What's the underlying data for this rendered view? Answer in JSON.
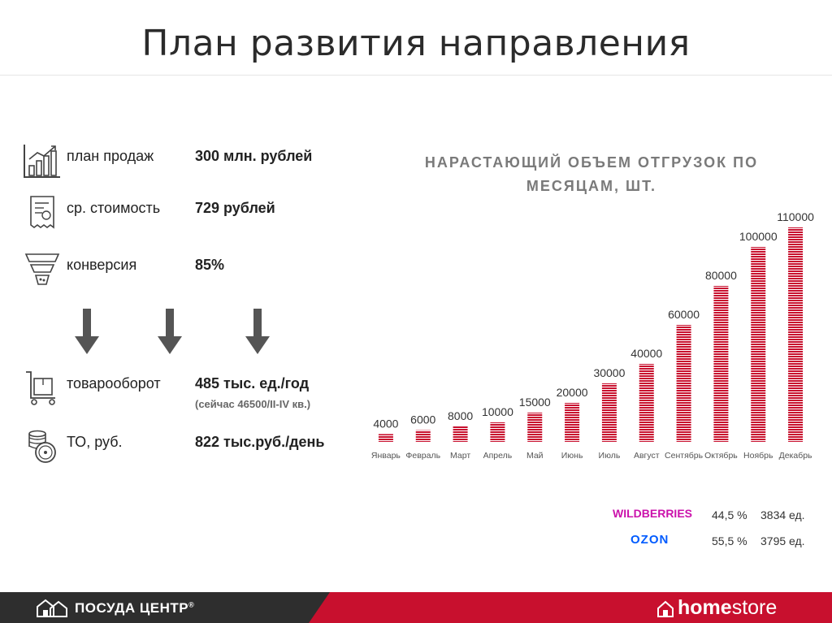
{
  "title": "План развития направления",
  "metrics": [
    {
      "icon": "sales-chart-icon",
      "label": "план продаж",
      "value": "300 млн. рублей"
    },
    {
      "icon": "receipt-icon",
      "label": "ср. стоимость",
      "value": "729 рублей"
    },
    {
      "icon": "funnel-icon",
      "label": "конверсия",
      "value": "85%"
    },
    {
      "icon": "cart-icon",
      "label": "товарооборот",
      "value": "485 тыс. ед./год",
      "sub": "(сейчас 46500/II-IV кв.)"
    },
    {
      "icon": "coins-icon",
      "label": "ТО, руб.",
      "value": "822 тыс.руб./день"
    }
  ],
  "arrows": [
    "arrow-down-icon",
    "arrow-down-icon",
    "arrow-down-icon"
  ],
  "chart_data": {
    "type": "bar",
    "title": "НАРАСТАЮЩИЙ ОБЪЕМ ОТГРУЗОК ПО МЕСЯЦАМ, ШТ.",
    "categories": [
      "Январь",
      "Февраль",
      "Март",
      "Апрель",
      "Май",
      "Июнь",
      "Июль",
      "Август",
      "Сентябрь",
      "Октябрь",
      "Ноябрь",
      "Декабрь"
    ],
    "values": [
      4000,
      6000,
      8000,
      10000,
      15000,
      20000,
      30000,
      40000,
      60000,
      80000,
      100000,
      110000
    ],
    "data_labels": [
      "4000",
      "6000",
      "8000",
      "10000",
      "15000",
      "20000",
      "30000",
      "40000",
      "60000",
      "80000",
      "100000",
      "110000"
    ],
    "ylim": [
      0,
      110000
    ],
    "grid": false,
    "legend": "none",
    "bar_color": "#c8102e"
  },
  "marketplaces": [
    {
      "name": "WILDBERRIES",
      "color": "#cb11ab",
      "share": "44,5 %",
      "count": "3834 ед."
    },
    {
      "name": "OZON",
      "color": "#005bff",
      "share": "55,5 %",
      "count": "3795 ед."
    }
  ],
  "footer": {
    "left_brand": "ПОСУДА ЦЕНТР",
    "left_mark": "®",
    "right_brand_bold": "home",
    "right_brand_light": "store",
    "right_color": "#c8102e",
    "left_color": "#2e2e2e"
  }
}
